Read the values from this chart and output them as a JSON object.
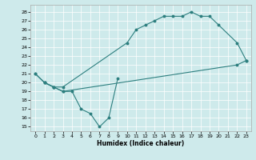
{
  "xlabel": "Humidex (Indice chaleur)",
  "background_color": "#ceeaeb",
  "line_color": "#2d7f7f",
  "xlim": [
    -0.5,
    23.5
  ],
  "ylim": [
    14.5,
    28.8
  ],
  "yticks": [
    15,
    16,
    17,
    18,
    19,
    20,
    21,
    22,
    23,
    24,
    25,
    26,
    27,
    28
  ],
  "xticks": [
    0,
    1,
    2,
    3,
    4,
    5,
    6,
    7,
    8,
    9,
    10,
    11,
    12,
    13,
    14,
    15,
    16,
    17,
    18,
    19,
    20,
    21,
    22,
    23
  ],
  "series": [
    {
      "x": [
        1,
        2,
        3,
        4,
        5,
        6,
        7,
        8,
        9
      ],
      "y": [
        20.0,
        19.5,
        19.0,
        19.0,
        17.0,
        16.5,
        15.0,
        16.0,
        20.5
      ]
    },
    {
      "x": [
        0,
        1,
        2,
        3,
        10,
        11,
        12,
        13,
        14,
        15,
        16,
        17,
        18,
        19,
        20,
        22,
        23
      ],
      "y": [
        21.0,
        20.0,
        19.5,
        19.5,
        24.5,
        26.0,
        26.5,
        27.0,
        27.5,
        27.5,
        27.5,
        28.0,
        27.5,
        27.5,
        26.5,
        24.5,
        22.5
      ]
    },
    {
      "x": [
        0,
        1,
        2,
        3,
        22,
        23
      ],
      "y": [
        21.0,
        20.0,
        19.5,
        19.0,
        22.0,
        22.5
      ]
    }
  ],
  "xlabel_fontsize": 5.5,
  "tick_fontsize": 4.5,
  "linewidth": 0.8,
  "markersize": 1.8
}
